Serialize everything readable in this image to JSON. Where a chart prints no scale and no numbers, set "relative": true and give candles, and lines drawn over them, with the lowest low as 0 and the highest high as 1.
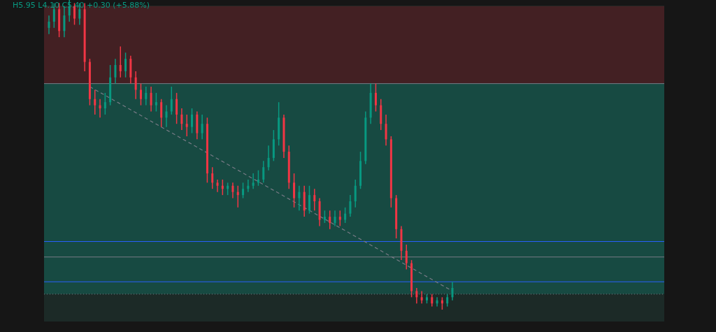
{
  "chart_data": {
    "type": "candlestick",
    "relative": true,
    "tick_labels": false,
    "annotations": [
      "H5.95 L4.10 C5.40 +0.30 (+5.88%)"
    ],
    "categories": [
      null,
      null,
      null,
      null,
      null,
      null,
      null,
      null,
      null,
      null,
      null,
      null,
      null,
      null,
      null,
      null,
      null,
      null,
      null,
      null,
      null,
      null,
      null,
      null,
      null,
      null,
      null,
      null,
      null,
      null,
      null,
      null,
      null,
      null,
      null,
      null,
      null,
      null,
      null,
      null,
      null,
      null,
      null,
      null,
      null,
      null,
      null,
      null,
      null,
      null,
      null,
      null,
      null,
      null,
      null,
      null,
      null,
      null,
      null,
      null,
      null,
      null,
      null,
      null,
      null,
      null,
      null,
      null,
      null,
      null,
      null,
      null,
      null,
      null,
      null,
      null,
      null,
      null,
      null,
      null
    ],
    "ohlc": [
      [
        0.91,
        0.95,
        0.89,
        0.93
      ],
      [
        0.93,
        0.99,
        0.91,
        0.97
      ],
      [
        0.97,
        0.99,
        0.88,
        0.9
      ],
      [
        0.9,
        0.98,
        0.88,
        0.95
      ],
      [
        0.95,
        1,
        0.93,
        0.98
      ],
      [
        0.98,
        0.99,
        0.92,
        0.94
      ],
      [
        0.94,
        0.99,
        0.92,
        0.97
      ],
      [
        0.97,
        0.99,
        0.77,
        0.8
      ],
      [
        0.8,
        0.81,
        0.66,
        0.68
      ],
      [
        0.68,
        0.71,
        0.63,
        0.66
      ],
      [
        0.66,
        0.68,
        0.62,
        0.65
      ],
      [
        0.65,
        0.7,
        0.63,
        0.67
      ],
      [
        0.67,
        0.79,
        0.66,
        0.75
      ],
      [
        0.75,
        0.81,
        0.73,
        0.79
      ],
      [
        0.79,
        0.85,
        0.75,
        0.77
      ],
      [
        0.77,
        0.83,
        0.75,
        0.81
      ],
      [
        0.81,
        0.82,
        0.73,
        0.75
      ],
      [
        0.75,
        0.77,
        0.68,
        0.71
      ],
      [
        0.71,
        0.73,
        0.66,
        0.68
      ],
      [
        0.68,
        0.72,
        0.66,
        0.7
      ],
      [
        0.7,
        0.72,
        0.64,
        0.66
      ],
      [
        0.66,
        0.7,
        0.64,
        0.67
      ],
      [
        0.67,
        0.68,
        0.59,
        0.62
      ],
      [
        0.62,
        0.66,
        0.59,
        0.64
      ],
      [
        0.64,
        0.72,
        0.63,
        0.68
      ],
      [
        0.68,
        0.7,
        0.6,
        0.63
      ],
      [
        0.63,
        0.65,
        0.58,
        0.6
      ],
      [
        0.6,
        0.63,
        0.56,
        0.59
      ],
      [
        0.59,
        0.65,
        0.57,
        0.63
      ],
      [
        0.63,
        0.64,
        0.55,
        0.57
      ],
      [
        0.57,
        0.63,
        0.55,
        0.6
      ],
      [
        0.6,
        0.62,
        0.41,
        0.44
      ],
      [
        0.44,
        0.46,
        0.39,
        0.41
      ],
      [
        0.41,
        0.42,
        0.38,
        0.4
      ],
      [
        0.4,
        0.42,
        0.37,
        0.39
      ],
      [
        0.39,
        0.41,
        0.37,
        0.4
      ],
      [
        0.4,
        0.41,
        0.36,
        0.38
      ],
      [
        0.38,
        0.4,
        0.33,
        0.37
      ],
      [
        0.37,
        0.41,
        0.36,
        0.39
      ],
      [
        0.39,
        0.42,
        0.38,
        0.4
      ],
      [
        0.4,
        0.44,
        0.39,
        0.41
      ],
      [
        0.41,
        0.45,
        0.4,
        0.42
      ],
      [
        0.42,
        0.48,
        0.41,
        0.46
      ],
      [
        0.46,
        0.53,
        0.45,
        0.49
      ],
      [
        0.49,
        0.58,
        0.48,
        0.55
      ],
      [
        0.55,
        0.67,
        0.53,
        0.62
      ],
      [
        0.62,
        0.63,
        0.49,
        0.51
      ],
      [
        0.51,
        0.53,
        0.39,
        0.41
      ],
      [
        0.41,
        0.44,
        0.33,
        0.36
      ],
      [
        0.36,
        0.4,
        0.32,
        0.38
      ],
      [
        0.38,
        0.4,
        0.3,
        0.32
      ],
      [
        0.32,
        0.4,
        0.31,
        0.37
      ],
      [
        0.37,
        0.39,
        0.32,
        0.35
      ],
      [
        0.35,
        0.36,
        0.27,
        0.29
      ],
      [
        0.29,
        0.32,
        0.28,
        0.3
      ],
      [
        0.3,
        0.32,
        0.26,
        0.28
      ],
      [
        0.28,
        0.32,
        0.27,
        0.3
      ],
      [
        0.3,
        0.32,
        0.27,
        0.29
      ],
      [
        0.29,
        0.33,
        0.28,
        0.31
      ],
      [
        0.31,
        0.37,
        0.3,
        0.35
      ],
      [
        0.35,
        0.42,
        0.33,
        0.4
      ],
      [
        0.4,
        0.51,
        0.39,
        0.48
      ],
      [
        0.48,
        0.64,
        0.47,
        0.62
      ],
      [
        0.62,
        0.73,
        0.6,
        0.7
      ],
      [
        0.7,
        0.73,
        0.64,
        0.66
      ],
      [
        0.66,
        0.68,
        0.58,
        0.6
      ],
      [
        0.6,
        0.63,
        0.53,
        0.55
      ],
      [
        0.55,
        0.56,
        0.33,
        0.36
      ],
      [
        0.36,
        0.37,
        0.23,
        0.26
      ],
      [
        0.26,
        0.27,
        0.16,
        0.19
      ],
      [
        0.19,
        0.21,
        0.13,
        0.15
      ],
      [
        0.15,
        0.16,
        0.04,
        0.06
      ],
      [
        0.06,
        0.07,
        0.02,
        0.04
      ],
      [
        0.04,
        0.06,
        0.02,
        0.03
      ],
      [
        0.03,
        0.05,
        0.02,
        0.04
      ],
      [
        0.04,
        0.05,
        0.01,
        0.02
      ],
      [
        0.02,
        0.04,
        0.01,
        0.03
      ],
      [
        0.03,
        0.04,
        0,
        0.02
      ],
      [
        0.02,
        0.05,
        0.01,
        0.04
      ],
      [
        0.04,
        0.09,
        0.03,
        0.07
      ]
    ],
    "colors": [
      "#089981",
      "#089981",
      "#f23645",
      "#089981",
      "#089981",
      "#f23645",
      "#089981",
      "#f23645",
      "#f23645",
      "#f23645",
      "#f23645",
      "#089981",
      "#089981",
      "#089981",
      "#f23645",
      "#089981",
      "#f23645",
      "#f23645",
      "#f23645",
      "#089981",
      "#f23645",
      "#089981",
      "#f23645",
      "#089981",
      "#089981",
      "#f23645",
      "#f23645",
      "#f23645",
      "#089981",
      "#f23645",
      "#089981",
      "#f23645",
      "#f23645",
      "#f23645",
      "#f23645",
      "#089981",
      "#f23645",
      "#f23645",
      "#089981",
      "#089981",
      "#089981",
      "#089981",
      "#089981",
      "#089981",
      "#089981",
      "#089981",
      "#f23645",
      "#f23645",
      "#f23645",
      "#089981",
      "#f23645",
      "#089981",
      "#f23645",
      "#f23645",
      "#089981",
      "#f23645",
      "#089981",
      "#f23645",
      "#089981",
      "#089981",
      "#089981",
      "#089981",
      "#089981",
      "#089981",
      "#f23645",
      "#f23645",
      "#f23645",
      "#f23645",
      "#f23645",
      "#f23645",
      "#f23645",
      "#f23645",
      "#f23645",
      "#f23645",
      "#089981",
      "#f23645",
      "#089981",
      "#f23645",
      "#089981",
      "#089981"
    ],
    "series": [
      {
        "type": "line",
        "values": [
          null,
          null,
          null,
          null,
          null,
          null,
          null,
          null,
          0.72,
          null,
          null,
          null,
          null,
          null,
          null,
          null,
          null,
          null,
          null,
          null,
          null,
          null,
          null,
          null,
          null,
          null,
          null,
          null,
          null,
          null,
          null,
          null,
          null,
          null,
          null,
          null,
          null,
          null,
          null,
          null,
          null,
          null,
          null,
          null,
          null,
          null,
          null,
          null,
          null,
          null,
          null,
          null,
          null,
          null,
          null,
          null,
          null,
          null,
          null,
          null,
          null,
          null,
          null,
          null,
          null,
          null,
          null,
          null,
          null,
          null,
          null,
          null,
          null,
          null,
          null,
          null,
          null,
          null,
          null,
          0.06
        ],
        "color": "#787b86",
        "line_style": "dashed"
      }
    ],
    "bands": [
      {
        "axis": "y",
        "from": 0.73,
        "to": 0.98,
        "color": "#432023"
      },
      {
        "axis": "y",
        "from": 0.05,
        "to": 0.73,
        "color": "#174a42"
      }
    ],
    "ref_lines": [
      {
        "axis": "y",
        "value": 0.73,
        "color": "#787b86"
      },
      {
        "axis": "y",
        "value": 0.22,
        "color": "#2962ff"
      },
      {
        "axis": "y",
        "value": 0.17,
        "color": "#787b86"
      },
      {
        "axis": "y",
        "value": 0.09,
        "color": "#2962ff"
      },
      {
        "axis": "y",
        "value": 0.05,
        "color": "#787b86",
        "line_style": "dotted"
      }
    ]
  }
}
